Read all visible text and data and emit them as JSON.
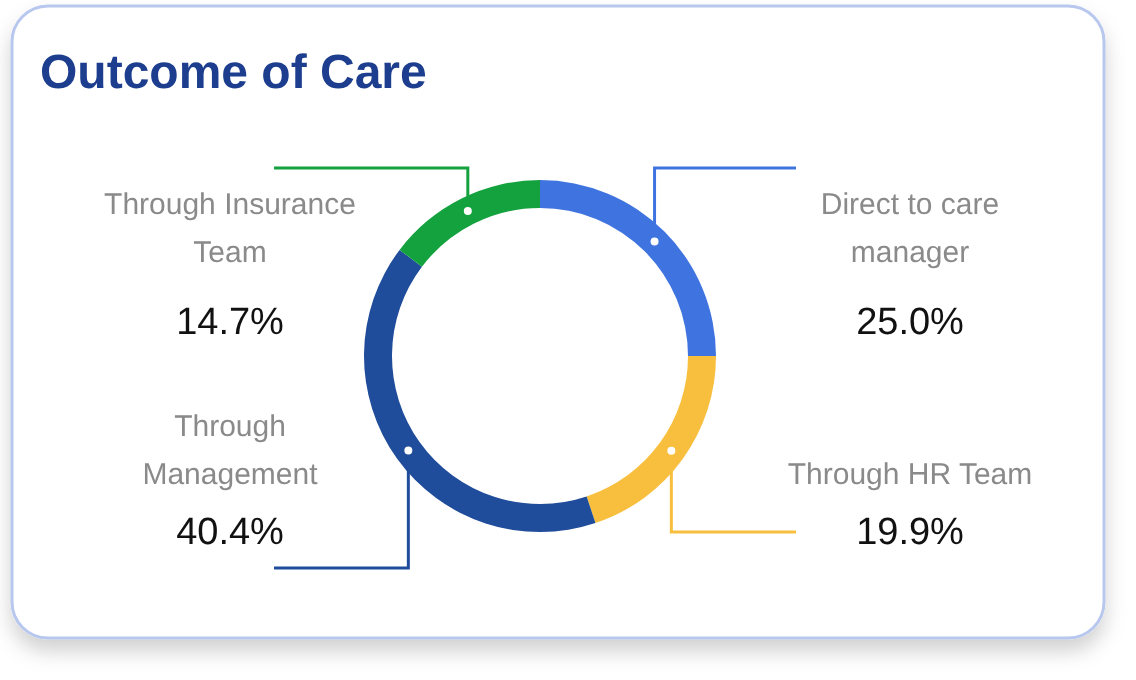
{
  "chart_data": {
    "type": "donut",
    "title": "Outcome of Care",
    "categories": [
      "Direct to care manager",
      "Through HR Team",
      "Through Management",
      "Through Insurance Team"
    ],
    "values": [
      25.0,
      19.9,
      40.4,
      14.7
    ],
    "value_labels": [
      "25.0%",
      "19.9%",
      "40.4%",
      "14.7%"
    ],
    "colors": [
      "#3f74e0",
      "#f8bf3f",
      "#1f4c9b",
      "#13a23e"
    ]
  }
}
